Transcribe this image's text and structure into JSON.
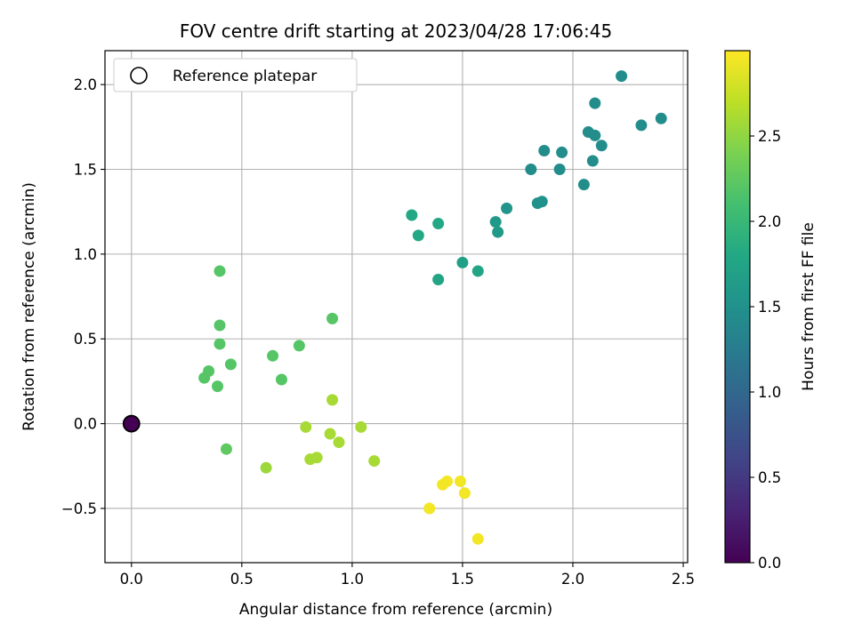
{
  "chart_data": {
    "type": "scatter",
    "title": "FOV centre drift starting at 2023/04/28 17:06:45",
    "xlabel": "Angular distance from reference (arcmin)",
    "ylabel": "Rotation from reference (arcmin)",
    "xlim": [
      -0.12,
      2.52
    ],
    "ylim": [
      -0.82,
      2.2
    ],
    "xticks": [
      0.0,
      0.5,
      1.0,
      1.5,
      2.0,
      2.5
    ],
    "xtick_labels": [
      "0.0",
      "0.5",
      "1.0",
      "1.5",
      "2.0",
      "2.5"
    ],
    "yticks": [
      -0.5,
      0.0,
      0.5,
      1.0,
      1.5,
      2.0
    ],
    "ytick_labels": [
      "−0.5",
      "0.0",
      "0.5",
      "1.0",
      "1.5",
      "2.0"
    ],
    "grid": true,
    "legend": {
      "placement": "top-left",
      "entries": [
        "Reference platepar"
      ]
    },
    "colorbar": {
      "label": "Hours from first FF file",
      "colormap": "viridis",
      "range": [
        0.0,
        3.0
      ],
      "ticks": [
        0.0,
        0.5,
        1.0,
        1.5,
        2.0,
        2.5
      ],
      "tick_labels": [
        "0.0",
        "0.5",
        "1.0",
        "1.5",
        "2.0",
        "2.5"
      ]
    },
    "reference": {
      "x": 0.0,
      "y": 0.0,
      "hours": 0.0
    },
    "series": [
      {
        "points": [
          {
            "x": 2.22,
            "y": 2.05,
            "hours": 1.45
          },
          {
            "x": 2.1,
            "y": 1.89,
            "hours": 1.45
          },
          {
            "x": 2.4,
            "y": 1.8,
            "hours": 1.45
          },
          {
            "x": 2.31,
            "y": 1.76,
            "hours": 1.45
          },
          {
            "x": 2.07,
            "y": 1.72,
            "hours": 1.45
          },
          {
            "x": 2.1,
            "y": 1.7,
            "hours": 1.45
          },
          {
            "x": 2.13,
            "y": 1.64,
            "hours": 1.45
          },
          {
            "x": 1.87,
            "y": 1.61,
            "hours": 1.45
          },
          {
            "x": 1.95,
            "y": 1.6,
            "hours": 1.45
          },
          {
            "x": 2.09,
            "y": 1.55,
            "hours": 1.45
          },
          {
            "x": 1.81,
            "y": 1.5,
            "hours": 1.45
          },
          {
            "x": 1.94,
            "y": 1.5,
            "hours": 1.45
          },
          {
            "x": 2.05,
            "y": 1.41,
            "hours": 1.45
          },
          {
            "x": 1.84,
            "y": 1.3,
            "hours": 1.5
          },
          {
            "x": 1.86,
            "y": 1.31,
            "hours": 1.5
          },
          {
            "x": 1.7,
            "y": 1.27,
            "hours": 1.55
          },
          {
            "x": 1.65,
            "y": 1.19,
            "hours": 1.6
          },
          {
            "x": 1.66,
            "y": 1.13,
            "hours": 1.6
          },
          {
            "x": 1.27,
            "y": 1.23,
            "hours": 1.8
          },
          {
            "x": 1.39,
            "y": 1.18,
            "hours": 1.8
          },
          {
            "x": 1.3,
            "y": 1.11,
            "hours": 1.8
          },
          {
            "x": 1.5,
            "y": 0.95,
            "hours": 1.7
          },
          {
            "x": 1.57,
            "y": 0.9,
            "hours": 1.75
          },
          {
            "x": 1.39,
            "y": 0.85,
            "hours": 1.75
          },
          {
            "x": 0.4,
            "y": 0.9,
            "hours": 2.2
          },
          {
            "x": 0.91,
            "y": 0.62,
            "hours": 2.2
          },
          {
            "x": 0.4,
            "y": 0.58,
            "hours": 2.2
          },
          {
            "x": 0.4,
            "y": 0.47,
            "hours": 2.2
          },
          {
            "x": 0.76,
            "y": 0.46,
            "hours": 2.2
          },
          {
            "x": 0.64,
            "y": 0.4,
            "hours": 2.2
          },
          {
            "x": 0.45,
            "y": 0.35,
            "hours": 2.2
          },
          {
            "x": 0.35,
            "y": 0.31,
            "hours": 2.2
          },
          {
            "x": 0.33,
            "y": 0.27,
            "hours": 2.2
          },
          {
            "x": 0.68,
            "y": 0.26,
            "hours": 2.2
          },
          {
            "x": 0.39,
            "y": 0.22,
            "hours": 2.2
          },
          {
            "x": 0.43,
            "y": -0.15,
            "hours": 2.25
          },
          {
            "x": 0.91,
            "y": 0.14,
            "hours": 2.6
          },
          {
            "x": 0.79,
            "y": -0.02,
            "hours": 2.6
          },
          {
            "x": 1.04,
            "y": -0.02,
            "hours": 2.6
          },
          {
            "x": 0.9,
            "y": -0.06,
            "hours": 2.6
          },
          {
            "x": 0.94,
            "y": -0.11,
            "hours": 2.6
          },
          {
            "x": 0.81,
            "y": -0.21,
            "hours": 2.6
          },
          {
            "x": 0.84,
            "y": -0.2,
            "hours": 2.6
          },
          {
            "x": 1.1,
            "y": -0.22,
            "hours": 2.6
          },
          {
            "x": 0.61,
            "y": -0.26,
            "hours": 2.55
          },
          {
            "x": 1.43,
            "y": -0.34,
            "hours": 2.95
          },
          {
            "x": 1.49,
            "y": -0.34,
            "hours": 2.95
          },
          {
            "x": 1.41,
            "y": -0.36,
            "hours": 2.95
          },
          {
            "x": 1.51,
            "y": -0.41,
            "hours": 2.95
          },
          {
            "x": 1.35,
            "y": -0.5,
            "hours": 2.95
          },
          {
            "x": 1.57,
            "y": -0.68,
            "hours": 2.95
          }
        ]
      }
    ]
  }
}
